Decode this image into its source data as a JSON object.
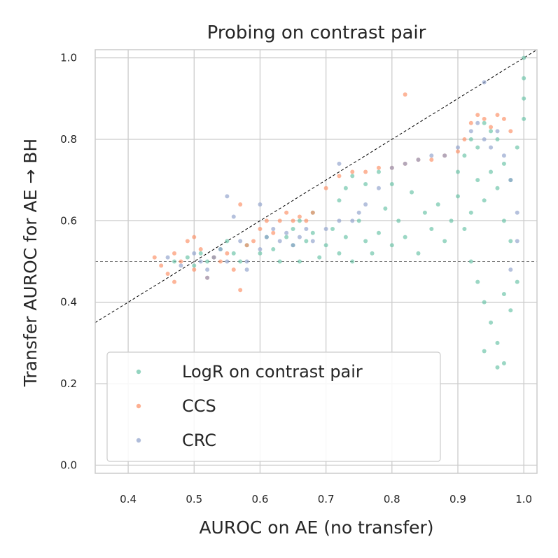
{
  "chart_data": {
    "type": "scatter",
    "title": "Probing on contrast pair",
    "xlabel": "AUROC on AE (no transfer)",
    "ylabel": "Transfer AUROC for AE → BH",
    "xlim": [
      0.35,
      1.02
    ],
    "ylim": [
      -0.02,
      1.02
    ],
    "xticks": [
      "0.4",
      "0.5",
      "0.6",
      "0.7",
      "0.8",
      "0.9",
      "1.0"
    ],
    "yticks": [
      "0.0",
      "0.2",
      "0.4",
      "0.6",
      "0.8",
      "1.0"
    ],
    "grid": true,
    "legend_position": "lower-left",
    "reference_lines": [
      {
        "type": "diagonal",
        "style": "dashed",
        "color": "#000000"
      },
      {
        "type": "horizontal",
        "y": 0.5,
        "style": "dashed",
        "color": "#808080"
      }
    ],
    "series": [
      {
        "name": "LogR on contrast pair",
        "color": "#66c2a5",
        "points": [
          [
            0.47,
            0.5
          ],
          [
            0.49,
            0.51
          ],
          [
            0.5,
            0.49
          ],
          [
            0.51,
            0.52
          ],
          [
            0.52,
            0.5
          ],
          [
            0.53,
            0.51
          ],
          [
            0.54,
            0.53
          ],
          [
            0.55,
            0.55
          ],
          [
            0.56,
            0.52
          ],
          [
            0.57,
            0.5
          ],
          [
            0.58,
            0.54
          ],
          [
            0.6,
            0.52
          ],
          [
            0.61,
            0.56
          ],
          [
            0.62,
            0.53
          ],
          [
            0.63,
            0.5
          ],
          [
            0.64,
            0.56
          ],
          [
            0.65,
            0.54
          ],
          [
            0.66,
            0.5
          ],
          [
            0.67,
            0.55
          ],
          [
            0.68,
            0.57
          ],
          [
            0.69,
            0.51
          ],
          [
            0.7,
            0.54
          ],
          [
            0.71,
            0.58
          ],
          [
            0.72,
            0.52
          ],
          [
            0.73,
            0.56
          ],
          [
            0.74,
            0.5
          ],
          [
            0.75,
            0.6
          ],
          [
            0.76,
            0.55
          ],
          [
            0.77,
            0.52
          ],
          [
            0.78,
            0.57
          ],
          [
            0.79,
            0.63
          ],
          [
            0.8,
            0.54
          ],
          [
            0.81,
            0.6
          ],
          [
            0.82,
            0.56
          ],
          [
            0.83,
            0.67
          ],
          [
            0.84,
            0.52
          ],
          [
            0.85,
            0.62
          ],
          [
            0.86,
            0.58
          ],
          [
            0.87,
            0.64
          ],
          [
            0.88,
            0.55
          ],
          [
            0.89,
            0.6
          ],
          [
            0.9,
            0.66
          ],
          [
            0.91,
            0.58
          ],
          [
            0.92,
            0.62
          ],
          [
            0.93,
            0.7
          ],
          [
            0.94,
            0.65
          ],
          [
            0.95,
            0.72
          ],
          [
            0.96,
            0.68
          ],
          [
            0.97,
            0.74
          ],
          [
            0.98,
            0.7
          ],
          [
            0.99,
            0.78
          ],
          [
            1.0,
            0.85
          ],
          [
            1.0,
            0.9
          ],
          [
            1.0,
            0.95
          ],
          [
            1.0,
            1.0
          ],
          [
            0.92,
            0.5
          ],
          [
            0.93,
            0.45
          ],
          [
            0.94,
            0.4
          ],
          [
            0.95,
            0.35
          ],
          [
            0.96,
            0.3
          ],
          [
            0.97,
            0.25
          ],
          [
            0.94,
            0.28
          ],
          [
            0.96,
            0.24
          ],
          [
            0.97,
            0.42
          ],
          [
            0.98,
            0.38
          ],
          [
            0.99,
            0.45
          ],
          [
            0.98,
            0.55
          ],
          [
            0.97,
            0.6
          ],
          [
            0.96,
            0.8
          ],
          [
            0.95,
            0.82
          ],
          [
            0.94,
            0.84
          ],
          [
            0.93,
            0.78
          ],
          [
            0.92,
            0.8
          ],
          [
            0.91,
            0.76
          ],
          [
            0.9,
            0.72
          ],
          [
            0.74,
            0.71
          ],
          [
            0.73,
            0.68
          ],
          [
            0.72,
            0.65
          ],
          [
            0.76,
            0.69
          ],
          [
            0.78,
            0.72
          ],
          [
            0.8,
            0.69
          ],
          [
            0.66,
            0.6
          ],
          [
            0.68,
            0.62
          ],
          [
            0.65,
            0.58
          ]
        ]
      },
      {
        "name": "CCS",
        "color": "#fc8d62",
        "points": [
          [
            0.44,
            0.51
          ],
          [
            0.45,
            0.49
          ],
          [
            0.46,
            0.47
          ],
          [
            0.47,
            0.52
          ],
          [
            0.48,
            0.5
          ],
          [
            0.49,
            0.55
          ],
          [
            0.5,
            0.48
          ],
          [
            0.51,
            0.53
          ],
          [
            0.52,
            0.46
          ],
          [
            0.53,
            0.51
          ],
          [
            0.54,
            0.5
          ],
          [
            0.55,
            0.52
          ],
          [
            0.56,
            0.48
          ],
          [
            0.57,
            0.43
          ],
          [
            0.58,
            0.54
          ],
          [
            0.59,
            0.55
          ],
          [
            0.6,
            0.58
          ],
          [
            0.61,
            0.6
          ],
          [
            0.62,
            0.57
          ],
          [
            0.63,
            0.6
          ],
          [
            0.64,
            0.62
          ],
          [
            0.65,
            0.6
          ],
          [
            0.66,
            0.61
          ],
          [
            0.67,
            0.6
          ],
          [
            0.68,
            0.62
          ],
          [
            0.7,
            0.68
          ],
          [
            0.72,
            0.71
          ],
          [
            0.74,
            0.72
          ],
          [
            0.76,
            0.72
          ],
          [
            0.78,
            0.73
          ],
          [
            0.8,
            0.73
          ],
          [
            0.82,
            0.74
          ],
          [
            0.84,
            0.75
          ],
          [
            0.86,
            0.75
          ],
          [
            0.88,
            0.76
          ],
          [
            0.9,
            0.77
          ],
          [
            0.91,
            0.8
          ],
          [
            0.92,
            0.84
          ],
          [
            0.93,
            0.86
          ],
          [
            0.94,
            0.85
          ],
          [
            0.95,
            0.83
          ],
          [
            0.96,
            0.86
          ],
          [
            0.97,
            0.85
          ],
          [
            0.98,
            0.82
          ],
          [
            0.82,
            0.91
          ],
          [
            0.57,
            0.64
          ],
          [
            0.47,
            0.45
          ],
          [
            0.5,
            0.56
          ]
        ]
      },
      {
        "name": "CRC",
        "color": "#8da0cb",
        "points": [
          [
            0.46,
            0.51
          ],
          [
            0.48,
            0.49
          ],
          [
            0.5,
            0.52
          ],
          [
            0.51,
            0.5
          ],
          [
            0.52,
            0.48
          ],
          [
            0.53,
            0.51
          ],
          [
            0.54,
            0.53
          ],
          [
            0.55,
            0.5
          ],
          [
            0.56,
            0.61
          ],
          [
            0.57,
            0.55
          ],
          [
            0.58,
            0.5
          ],
          [
            0.6,
            0.53
          ],
          [
            0.61,
            0.56
          ],
          [
            0.62,
            0.58
          ],
          [
            0.63,
            0.55
          ],
          [
            0.64,
            0.57
          ],
          [
            0.65,
            0.54
          ],
          [
            0.66,
            0.56
          ],
          [
            0.67,
            0.58
          ],
          [
            0.68,
            0.55
          ],
          [
            0.7,
            0.58
          ],
          [
            0.72,
            0.6
          ],
          [
            0.74,
            0.6
          ],
          [
            0.75,
            0.62
          ],
          [
            0.76,
            0.64
          ],
          [
            0.78,
            0.68
          ],
          [
            0.8,
            0.73
          ],
          [
            0.82,
            0.74
          ],
          [
            0.84,
            0.75
          ],
          [
            0.86,
            0.76
          ],
          [
            0.88,
            0.76
          ],
          [
            0.9,
            0.78
          ],
          [
            0.92,
            0.82
          ],
          [
            0.93,
            0.84
          ],
          [
            0.94,
            0.8
          ],
          [
            0.95,
            0.78
          ],
          [
            0.96,
            0.82
          ],
          [
            0.97,
            0.76
          ],
          [
            0.98,
            0.7
          ],
          [
            0.99,
            0.62
          ],
          [
            0.99,
            0.55
          ],
          [
            0.98,
            0.48
          ],
          [
            0.72,
            0.74
          ],
          [
            0.55,
            0.66
          ],
          [
            0.94,
            0.94
          ],
          [
            0.6,
            0.64
          ],
          [
            0.52,
            0.46
          ],
          [
            0.58,
            0.48
          ]
        ]
      }
    ]
  }
}
